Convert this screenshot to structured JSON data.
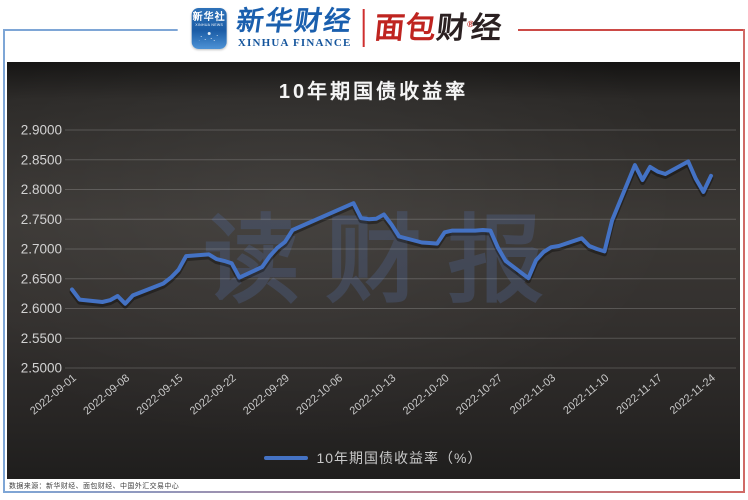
{
  "header": {
    "xinhua_news_icon": {
      "name_cn": "新华社",
      "name_en": "XINHUA NEWS"
    },
    "xinhua_finance": {
      "name_cn": "新华财经",
      "name_en": "XINHUA FINANCE"
    },
    "bread_finance": {
      "cn_red": "面包",
      "cn_dark_1": "财",
      "registered_mark": "®",
      "cn_dark_2": "经"
    }
  },
  "watermark_text": "读财报",
  "source_note": "数据来源：新华财经、面包财经、中国外汇交易中心",
  "colors": {
    "line": "#4472c4",
    "panel_background": "#33302e",
    "border_left_blue": "#7ea6d6",
    "border_right_red": "#d06a66",
    "brand_blue": "#1a5fae",
    "brand_red": "#bf2420",
    "axis_text": "#cccccc",
    "watermark": "#4c5c80"
  },
  "chart_data": {
    "type": "line",
    "title": "10年期国债收益率",
    "series_name": "10年期国债收益率（%）",
    "xlabel": "",
    "ylabel": "",
    "ylim": [
      2.5,
      2.9
    ],
    "ytick_step": 0.05,
    "grid": true,
    "legend_position": "bottom",
    "line_color": "#4472c4",
    "ytick_labels": [
      "2.9000",
      "2.8500",
      "2.8000",
      "2.7500",
      "2.7000",
      "2.6500",
      "2.6000",
      "2.5500",
      "2.5000"
    ],
    "xtick_labels": [
      "2022-09-01",
      "2022-09-08",
      "2022-09-15",
      "2022-09-22",
      "2022-09-29",
      "2022-10-06",
      "2022-10-13",
      "2022-10-20",
      "2022-10-27",
      "2022-11-03",
      "2022-11-10",
      "2022-11-17",
      "2022-11-24"
    ],
    "points": [
      [
        "2022-09-01",
        2.632
      ],
      [
        "2022-09-02",
        2.615
      ],
      [
        "2022-09-05",
        2.611
      ],
      [
        "2022-09-06",
        2.614
      ],
      [
        "2022-09-07",
        2.621
      ],
      [
        "2022-09-08",
        2.608
      ],
      [
        "2022-09-09",
        2.622
      ],
      [
        "2022-09-13",
        2.642
      ],
      [
        "2022-09-14",
        2.652
      ],
      [
        "2022-09-15",
        2.665
      ],
      [
        "2022-09-16",
        2.688
      ],
      [
        "2022-09-19",
        2.691
      ],
      [
        "2022-09-20",
        2.683
      ],
      [
        "2022-09-21",
        2.68
      ],
      [
        "2022-09-22",
        2.676
      ],
      [
        "2022-09-23",
        2.652
      ],
      [
        "2022-09-26",
        2.67
      ],
      [
        "2022-09-27",
        2.688
      ],
      [
        "2022-09-28",
        2.702
      ],
      [
        "2022-09-29",
        2.712
      ],
      [
        "2022-09-30",
        2.732
      ],
      [
        "2022-10-08",
        2.777
      ],
      [
        "2022-10-09",
        2.752
      ],
      [
        "2022-10-10",
        2.75
      ],
      [
        "2022-10-11",
        2.751
      ],
      [
        "2022-10-12",
        2.758
      ],
      [
        "2022-10-13",
        2.741
      ],
      [
        "2022-10-14",
        2.721
      ],
      [
        "2022-10-17",
        2.711
      ],
      [
        "2022-10-18",
        2.71
      ],
      [
        "2022-10-19",
        2.709
      ],
      [
        "2022-10-20",
        2.728
      ],
      [
        "2022-10-21",
        2.731
      ],
      [
        "2022-10-24",
        2.731
      ],
      [
        "2022-10-25",
        2.732
      ],
      [
        "2022-10-26",
        2.731
      ],
      [
        "2022-10-27",
        2.702
      ],
      [
        "2022-10-28",
        2.68
      ],
      [
        "2022-10-31",
        2.651
      ],
      [
        "2022-11-01",
        2.681
      ],
      [
        "2022-11-02",
        2.695
      ],
      [
        "2022-11-03",
        2.703
      ],
      [
        "2022-11-04",
        2.705
      ],
      [
        "2022-11-07",
        2.718
      ],
      [
        "2022-11-08",
        2.705
      ],
      [
        "2022-11-09",
        2.7
      ],
      [
        "2022-11-10",
        2.696
      ],
      [
        "2022-11-11",
        2.748
      ],
      [
        "2022-11-14",
        2.841
      ],
      [
        "2022-11-15",
        2.816
      ],
      [
        "2022-11-16",
        2.838
      ],
      [
        "2022-11-17",
        2.83
      ],
      [
        "2022-11-18",
        2.826
      ],
      [
        "2022-11-21",
        2.847
      ],
      [
        "2022-11-22",
        2.818
      ],
      [
        "2022-11-23",
        2.796
      ],
      [
        "2022-11-24",
        2.823
      ]
    ]
  }
}
